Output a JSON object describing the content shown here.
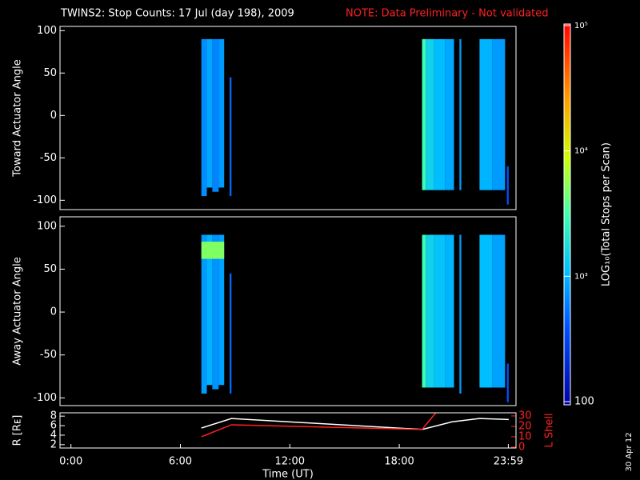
{
  "title": "TWINS2: Stop Counts: 17 Jul (day 198), 2009",
  "note": "NOTE: Data Preliminary - Not validated",
  "date_stamp": "30 Apr 12",
  "colorbar": {
    "label": "LOG₁₀(Total Stops per Scan)",
    "log": true,
    "lim": [
      100,
      100000
    ],
    "ticks": [
      {
        "value": 100000,
        "label": "10⁵"
      },
      {
        "value": 10000,
        "label": "10⁴"
      },
      {
        "value": 1000,
        "label": "10³"
      },
      100
    ]
  },
  "chart_data": [
    {
      "type": "heatmap",
      "ylabel": "Toward Actuator Angle",
      "xlim": [
        -0.6,
        24.4
      ],
      "ylim": [
        -111,
        105
      ],
      "yticks": [
        -100,
        -50,
        0,
        50,
        100
      ],
      "cells": [
        [
          7.15,
          7.45,
          -95,
          90,
          700
        ],
        [
          7.45,
          7.75,
          -85,
          90,
          900
        ],
        [
          7.75,
          8.1,
          -90,
          90,
          650
        ],
        [
          8.1,
          8.4,
          -85,
          90,
          800
        ],
        [
          8.7,
          8.8,
          -95,
          45,
          500
        ],
        [
          19.25,
          19.45,
          -88,
          90,
          3000
        ],
        [
          19.45,
          19.9,
          -88,
          90,
          1500
        ],
        [
          19.9,
          20.5,
          -88,
          90,
          1100
        ],
        [
          20.5,
          21.0,
          -88,
          90,
          900
        ],
        [
          21.3,
          21.4,
          -88,
          90,
          800
        ],
        [
          22.4,
          23.1,
          -88,
          90,
          1000
        ],
        [
          23.1,
          23.8,
          -88,
          90,
          800
        ],
        [
          23.9,
          24.0,
          -105,
          -60,
          400
        ]
      ]
    },
    {
      "type": "heatmap",
      "ylabel": "Away Actuator Angle",
      "xlim": [
        -0.6,
        24.4
      ],
      "ylim": [
        -109,
        111
      ],
      "yticks": [
        -100,
        -50,
        0,
        50,
        100
      ],
      "cells": [
        [
          7.15,
          7.45,
          -95,
          90,
          800
        ],
        [
          7.45,
          7.75,
          -85,
          90,
          1000
        ],
        [
          7.75,
          8.1,
          -90,
          90,
          750
        ],
        [
          8.1,
          8.4,
          -85,
          90,
          850
        ],
        [
          7.15,
          8.4,
          62,
          82,
          5000
        ],
        [
          8.7,
          8.8,
          -95,
          45,
          500
        ],
        [
          19.25,
          19.45,
          -88,
          90,
          3000
        ],
        [
          19.45,
          19.9,
          -88,
          90,
          1500
        ],
        [
          19.9,
          20.5,
          -88,
          90,
          1200
        ],
        [
          20.5,
          21.0,
          -88,
          90,
          1000
        ],
        [
          21.3,
          21.4,
          -95,
          90,
          800
        ],
        [
          22.4,
          23.1,
          -88,
          90,
          1100
        ],
        [
          23.1,
          23.8,
          -88,
          90,
          850
        ],
        [
          23.9,
          24.0,
          -105,
          -60,
          400
        ]
      ]
    },
    {
      "type": "line",
      "xlabel": "Time (UT)",
      "ylabel": "R [Rᴇ]",
      "y2label": "L Shell",
      "xlim": [
        -0.6,
        24.4
      ],
      "ylim": [
        1.3,
        8.7
      ],
      "yticks": [
        2,
        4,
        6,
        8
      ],
      "y2lim": [
        -0.8,
        33
      ],
      "y2ticks": [
        0,
        10,
        20,
        30
      ],
      "xticks": [
        {
          "value": 0,
          "label": "0:00"
        },
        {
          "value": 6,
          "label": "6:00"
        },
        {
          "value": 12,
          "label": "12:00"
        },
        {
          "value": 18,
          "label": "18:00"
        },
        {
          "value": 23.98,
          "label": "23:59"
        }
      ],
      "series": [
        {
          "name": "R",
          "color": "#ffffff",
          "x": [
            7.15,
            8.8,
            19.25,
            20.9,
            22.4,
            24.0
          ],
          "values": [
            5.5,
            7.5,
            5.2,
            6.8,
            7.5,
            7.3
          ]
        },
        {
          "name": "L Shell",
          "color": "#ff2020",
          "axis": "y2",
          "x": [
            7.15,
            8.8,
            19.25,
            20.0
          ],
          "values": [
            10,
            21.5,
            17,
            33
          ]
        }
      ]
    }
  ]
}
